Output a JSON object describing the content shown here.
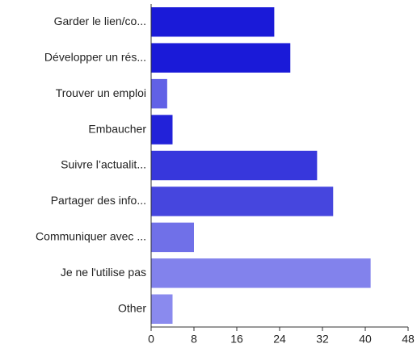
{
  "chart_data": {
    "type": "hbar",
    "categories": [
      "Garder le lien/co...",
      "Développer un rés...",
      "Trouver un emploi",
      "Embaucher",
      "Suivre l’actualit...",
      "Partager des info...",
      "Communiquer avec ...",
      "Je ne l'utilise pas",
      "Other"
    ],
    "values": [
      23,
      26,
      3,
      4,
      31,
      34,
      8,
      41,
      4
    ],
    "colors": [
      "#1a1ad8",
      "#1a1ad8",
      "#6161e6",
      "#2222d9",
      "#3737dc",
      "#4646de",
      "#7070e8",
      "#8282ec",
      "#8a8aee"
    ],
    "xlim": [
      0,
      48
    ],
    "xticks": [
      0,
      8,
      16,
      24,
      32,
      40,
      48
    ],
    "grid": false
  }
}
